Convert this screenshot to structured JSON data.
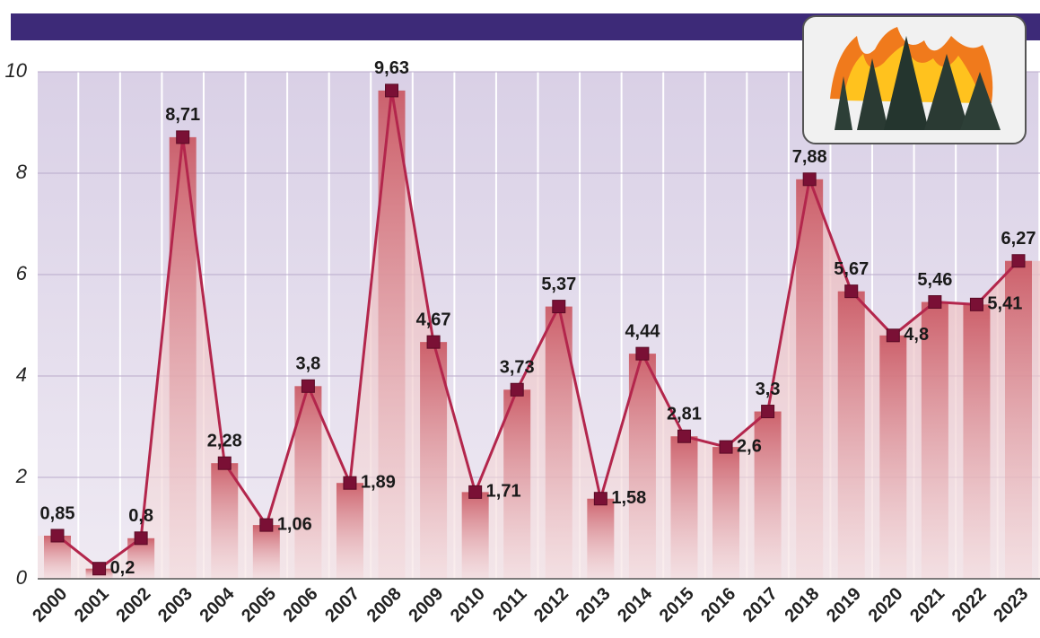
{
  "chart_data": {
    "type": "line",
    "categories": [
      "2000",
      "2001",
      "2002",
      "2003",
      "2004",
      "2005",
      "2006",
      "2007",
      "2008",
      "2009",
      "2010",
      "2011",
      "2012",
      "2013",
      "2014",
      "2015",
      "2016",
      "2017",
      "2018",
      "2019",
      "2020",
      "2021",
      "2022",
      "2023"
    ],
    "values": [
      0.85,
      0.2,
      0.8,
      8.71,
      2.28,
      1.06,
      3.8,
      1.89,
      9.63,
      4.67,
      1.71,
      3.73,
      5.37,
      1.58,
      4.44,
      2.81,
      2.6,
      3.3,
      7.88,
      5.67,
      4.8,
      5.46,
      5.41,
      6.27
    ],
    "value_labels": [
      "0,85",
      "0,2",
      "0,8",
      "8,71",
      "2,28",
      "1,06",
      "3,8",
      "1,89",
      "9,63",
      "4,67",
      "1,71",
      "3,73",
      "5,37",
      "1,58",
      "4,44",
      "2,81",
      "2,6",
      "3,3",
      "7,88",
      "5,67",
      "4,8",
      "5,46",
      "5,41",
      "6,27"
    ],
    "color": "#b3264c",
    "ylim": [
      0,
      10
    ],
    "yticks": [
      0,
      2,
      4,
      6,
      8,
      10
    ],
    "grid": true
  }
}
